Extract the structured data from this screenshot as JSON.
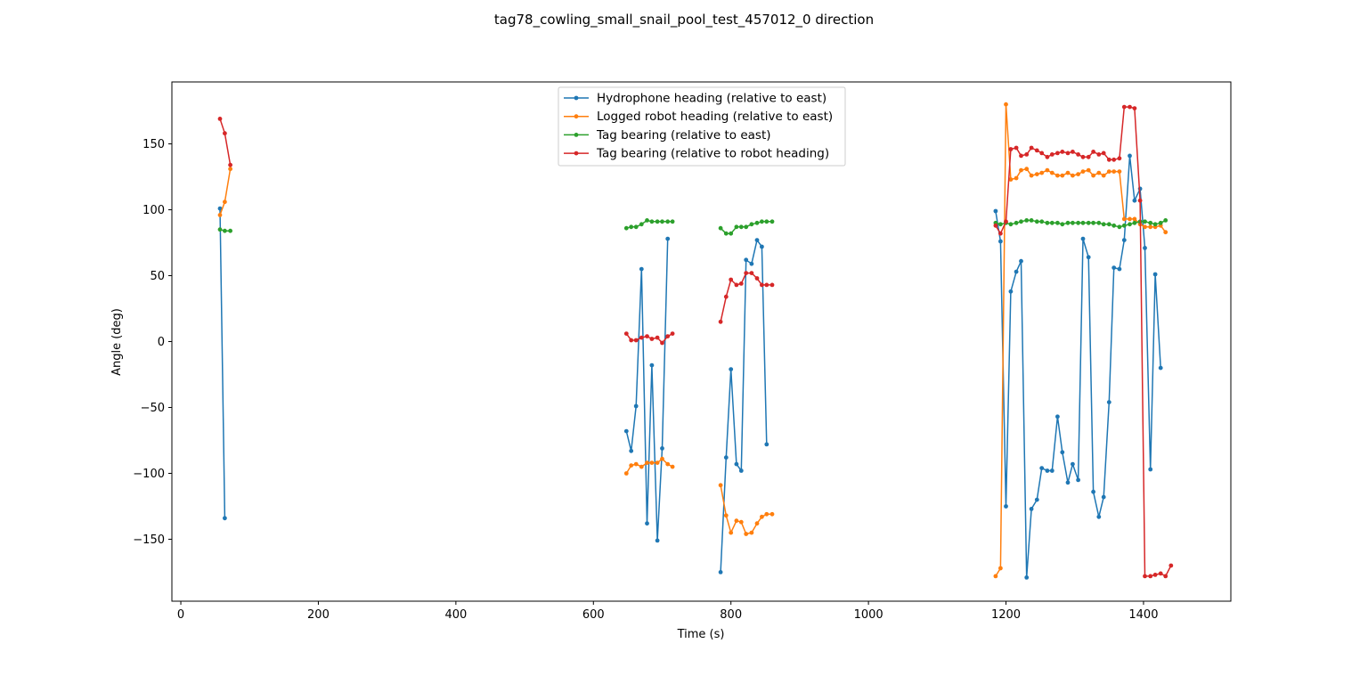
{
  "chart_data": {
    "type": "line",
    "title": "tag78_cowling_small_snail_pool_test_457012_0 direction",
    "xlabel": "Time (s)",
    "ylabel": "Angle (deg)",
    "xlim": [
      -13,
      1527
    ],
    "ylim": [
      -197,
      197
    ],
    "xticks": [
      0,
      200,
      400,
      600,
      800,
      1000,
      1200,
      1400
    ],
    "yticks": [
      -150,
      -100,
      -50,
      0,
      50,
      100,
      150
    ],
    "grid": false,
    "legend_position": "upper center",
    "series": [
      {
        "name": "Hydrophone heading (relative to east)",
        "color": "#1f77b4",
        "segments": [
          [
            [
              57,
              101
            ],
            [
              64,
              -134
            ]
          ],
          [
            [
              648,
              -68
            ],
            [
              655,
              -83
            ],
            [
              662,
              -49
            ],
            [
              670,
              55
            ],
            [
              678,
              -138
            ],
            [
              685,
              -18
            ],
            [
              693,
              -151
            ],
            [
              700,
              -81
            ],
            [
              708,
              78
            ]
          ],
          [
            [
              785,
              -175
            ],
            [
              793,
              -88
            ],
            [
              800,
              -21
            ],
            [
              808,
              -93
            ],
            [
              815,
              -98
            ],
            [
              822,
              62
            ],
            [
              830,
              59
            ],
            [
              838,
              77
            ],
            [
              845,
              72
            ],
            [
              852,
              -78
            ]
          ],
          [
            [
              1185,
              99
            ],
            [
              1192,
              76
            ],
            [
              1200,
              -125
            ],
            [
              1207,
              38
            ],
            [
              1215,
              53
            ],
            [
              1222,
              61
            ],
            [
              1230,
              -179
            ],
            [
              1237,
              -127
            ],
            [
              1245,
              -120
            ],
            [
              1252,
              -96
            ],
            [
              1260,
              -98
            ],
            [
              1267,
              -98
            ],
            [
              1275,
              -57
            ],
            [
              1282,
              -84
            ],
            [
              1290,
              -107
            ],
            [
              1297,
              -93
            ],
            [
              1305,
              -105
            ],
            [
              1312,
              78
            ],
            [
              1320,
              64
            ],
            [
              1327,
              -114
            ],
            [
              1335,
              -133
            ],
            [
              1342,
              -118
            ],
            [
              1350,
              -46
            ],
            [
              1357,
              56
            ],
            [
              1365,
              55
            ],
            [
              1372,
              77
            ],
            [
              1380,
              141
            ],
            [
              1387,
              107
            ],
            [
              1395,
              116
            ],
            [
              1402,
              71
            ],
            [
              1410,
              -97
            ],
            [
              1417,
              51
            ],
            [
              1425,
              -20
            ]
          ]
        ]
      },
      {
        "name": "Logged robot heading (relative to east)",
        "color": "#ff7f0e",
        "segments": [
          [
            [
              57,
              96
            ],
            [
              64,
              106
            ],
            [
              72,
              131
            ]
          ],
          [
            [
              648,
              -100
            ],
            [
              655,
              -94
            ],
            [
              662,
              -93
            ],
            [
              670,
              -95
            ],
            [
              678,
              -92
            ],
            [
              685,
              -92
            ],
            [
              693,
              -92
            ],
            [
              700,
              -89
            ],
            [
              708,
              -93
            ],
            [
              715,
              -95
            ]
          ],
          [
            [
              785,
              -109
            ],
            [
              793,
              -132
            ],
            [
              800,
              -145
            ],
            [
              808,
              -136
            ],
            [
              815,
              -137
            ],
            [
              822,
              -146
            ],
            [
              830,
              -145
            ],
            [
              838,
              -138
            ],
            [
              845,
              -133
            ],
            [
              852,
              -131
            ],
            [
              860,
              -131
            ]
          ],
          [
            [
              1185,
              -178
            ],
            [
              1192,
              -172
            ],
            [
              1200,
              180
            ],
            [
              1207,
              123
            ],
            [
              1215,
              124
            ],
            [
              1222,
              130
            ],
            [
              1230,
              131
            ],
            [
              1237,
              126
            ],
            [
              1245,
              127
            ],
            [
              1252,
              128
            ],
            [
              1260,
              130
            ],
            [
              1267,
              128
            ],
            [
              1275,
              126
            ],
            [
              1282,
              126
            ],
            [
              1290,
              128
            ],
            [
              1297,
              126
            ],
            [
              1305,
              127
            ],
            [
              1312,
              129
            ],
            [
              1320,
              130
            ],
            [
              1327,
              126
            ],
            [
              1335,
              128
            ],
            [
              1342,
              126
            ],
            [
              1350,
              129
            ],
            [
              1357,
              129
            ],
            [
              1365,
              129
            ],
            [
              1372,
              93
            ],
            [
              1380,
              93
            ],
            [
              1387,
              93
            ],
            [
              1395,
              89
            ],
            [
              1402,
              87
            ],
            [
              1410,
              87
            ],
            [
              1417,
              87
            ],
            [
              1425,
              88
            ],
            [
              1432,
              83
            ]
          ]
        ]
      },
      {
        "name": "Tag bearing (relative to east)",
        "color": "#2ca02c",
        "segments": [
          [
            [
              57,
              85
            ],
            [
              64,
              84
            ],
            [
              72,
              84
            ]
          ],
          [
            [
              648,
              86
            ],
            [
              655,
              87
            ],
            [
              662,
              87
            ],
            [
              670,
              89
            ],
            [
              678,
              92
            ],
            [
              685,
              91
            ],
            [
              693,
              91
            ],
            [
              700,
              91
            ],
            [
              708,
              91
            ],
            [
              715,
              91
            ]
          ],
          [
            [
              785,
              86
            ],
            [
              793,
              82
            ],
            [
              800,
              82
            ],
            [
              808,
              87
            ],
            [
              815,
              87
            ],
            [
              822,
              87
            ],
            [
              830,
              89
            ],
            [
              838,
              90
            ],
            [
              845,
              91
            ],
            [
              852,
              91
            ],
            [
              860,
              91
            ]
          ],
          [
            [
              1185,
              90
            ],
            [
              1192,
              89
            ],
            [
              1200,
              90
            ],
            [
              1207,
              89
            ],
            [
              1215,
              90
            ],
            [
              1222,
              91
            ],
            [
              1230,
              92
            ],
            [
              1237,
              92
            ],
            [
              1245,
              91
            ],
            [
              1252,
              91
            ],
            [
              1260,
              90
            ],
            [
              1267,
              90
            ],
            [
              1275,
              90
            ],
            [
              1282,
              89
            ],
            [
              1290,
              90
            ],
            [
              1297,
              90
            ],
            [
              1305,
              90
            ],
            [
              1312,
              90
            ],
            [
              1320,
              90
            ],
            [
              1327,
              90
            ],
            [
              1335,
              90
            ],
            [
              1342,
              89
            ],
            [
              1350,
              89
            ],
            [
              1357,
              88
            ],
            [
              1365,
              87
            ],
            [
              1372,
              88
            ],
            [
              1380,
              89
            ],
            [
              1387,
              90
            ],
            [
              1395,
              91
            ],
            [
              1402,
              91
            ],
            [
              1410,
              90
            ],
            [
              1417,
              89
            ],
            [
              1425,
              90
            ],
            [
              1432,
              92
            ]
          ]
        ]
      },
      {
        "name": "Tag bearing (relative to robot heading)",
        "color": "#d62728",
        "segments": [
          [
            [
              57,
              169
            ],
            [
              64,
              158
            ],
            [
              72,
              134
            ]
          ],
          [
            [
              648,
              6
            ],
            [
              655,
              1
            ],
            [
              662,
              1
            ],
            [
              670,
              3
            ],
            [
              678,
              4
            ],
            [
              685,
              2
            ],
            [
              693,
              3
            ],
            [
              700,
              -1
            ],
            [
              708,
              4
            ],
            [
              715,
              6
            ]
          ],
          [
            [
              785,
              15
            ],
            [
              793,
              34
            ],
            [
              800,
              47
            ],
            [
              808,
              43
            ],
            [
              815,
              44
            ],
            [
              822,
              52
            ],
            [
              830,
              52
            ],
            [
              838,
              48
            ],
            [
              845,
              43
            ],
            [
              852,
              43
            ],
            [
              860,
              43
            ]
          ],
          [
            [
              1185,
              88
            ],
            [
              1192,
              82
            ],
            [
              1200,
              91
            ],
            [
              1207,
              146
            ],
            [
              1215,
              147
            ],
            [
              1222,
              141
            ],
            [
              1230,
              142
            ],
            [
              1237,
              147
            ],
            [
              1245,
              145
            ],
            [
              1252,
              143
            ],
            [
              1260,
              140
            ],
            [
              1267,
              142
            ],
            [
              1275,
              143
            ],
            [
              1282,
              144
            ],
            [
              1290,
              143
            ],
            [
              1297,
              144
            ],
            [
              1305,
              142
            ],
            [
              1312,
              140
            ],
            [
              1320,
              140
            ],
            [
              1327,
              144
            ],
            [
              1335,
              142
            ],
            [
              1342,
              143
            ],
            [
              1350,
              138
            ],
            [
              1357,
              138
            ],
            [
              1365,
              139
            ],
            [
              1372,
              178
            ],
            [
              1380,
              178
            ],
            [
              1387,
              177
            ],
            [
              1395,
              107
            ],
            [
              1402,
              -178
            ],
            [
              1410,
              -178
            ],
            [
              1417,
              -177
            ],
            [
              1425,
              -176
            ],
            [
              1432,
              -178
            ],
            [
              1440,
              -170
            ]
          ]
        ]
      }
    ]
  }
}
